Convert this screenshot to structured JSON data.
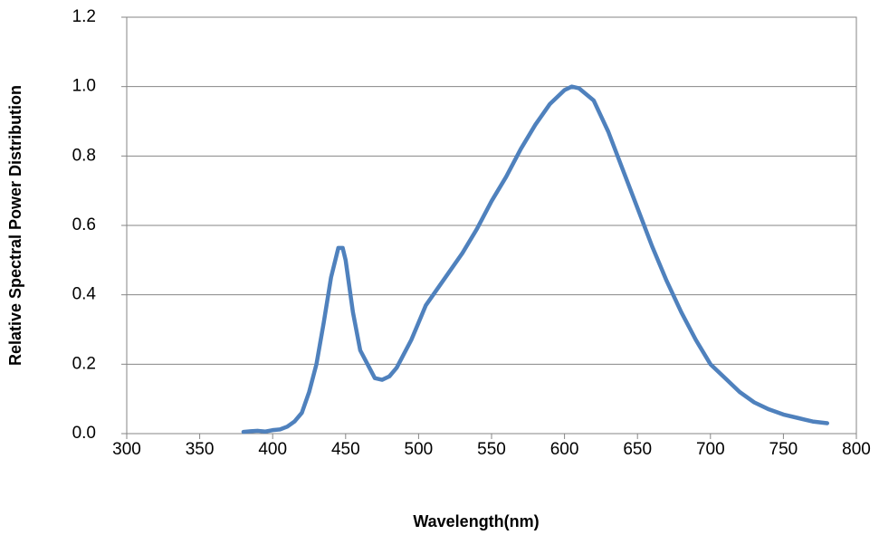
{
  "chart_data": {
    "type": "line",
    "xlabel": "Wavelength(nm)",
    "ylabel": "Relative Spectral Power Distribution",
    "x": [
      380,
      385,
      390,
      395,
      400,
      405,
      410,
      415,
      420,
      425,
      430,
      435,
      440,
      445,
      448,
      450,
      455,
      460,
      465,
      470,
      475,
      480,
      485,
      490,
      495,
      500,
      505,
      510,
      520,
      530,
      540,
      550,
      560,
      570,
      580,
      590,
      600,
      605,
      610,
      620,
      630,
      640,
      650,
      660,
      670,
      680,
      690,
      700,
      710,
      720,
      730,
      740,
      750,
      760,
      770,
      780
    ],
    "series": [
      {
        "name": "Relative Spectral Power Distribution",
        "color": "#4f81bd",
        "values": [
          0.005,
          0.007,
          0.008,
          0.006,
          0.01,
          0.012,
          0.02,
          0.035,
          0.06,
          0.12,
          0.2,
          0.32,
          0.45,
          0.535,
          0.535,
          0.5,
          0.35,
          0.24,
          0.2,
          0.16,
          0.155,
          0.165,
          0.19,
          0.23,
          0.27,
          0.32,
          0.37,
          0.4,
          0.46,
          0.52,
          0.59,
          0.67,
          0.74,
          0.82,
          0.89,
          0.95,
          0.99,
          1.0,
          0.995,
          0.96,
          0.87,
          0.76,
          0.65,
          0.54,
          0.44,
          0.35,
          0.27,
          0.2,
          0.16,
          0.12,
          0.09,
          0.07,
          0.055,
          0.045,
          0.035,
          0.03
        ]
      }
    ],
    "xlim": [
      300,
      800
    ],
    "xticks": [
      300,
      350,
      400,
      450,
      500,
      550,
      600,
      650,
      700,
      750,
      800
    ],
    "ylim": [
      0,
      1.2
    ],
    "yticks": [
      {
        "value": 0,
        "label": "0.0"
      },
      0.2,
      0.4,
      0.6,
      0.8,
      {
        "value": 1,
        "label": "1.0"
      },
      1.2
    ],
    "grid": true
  }
}
